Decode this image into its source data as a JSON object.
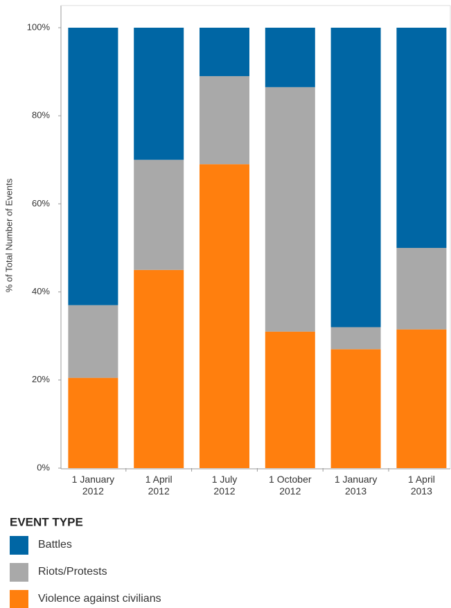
{
  "chart_data": {
    "type": "stacked-bar-100",
    "y_label": "% of Total Number of Events",
    "categories": [
      "1 January\n2012",
      "1 April\n2012",
      "1 July\n2012",
      "1 October\n2012",
      "1 January\n2013",
      "1 April\n2013"
    ],
    "series": [
      {
        "name": "Violence against civilians",
        "color": "#ff7f0e",
        "values": [
          20.5,
          45,
          69,
          31,
          27,
          31.5
        ]
      },
      {
        "name": "Riots/Protests",
        "color": "#a9a9a9",
        "values": [
          16.5,
          25,
          20,
          55.5,
          5,
          18.5
        ]
      },
      {
        "name": "Battles",
        "color": "#0066a4",
        "values": [
          63,
          30,
          11,
          13.5,
          68,
          50
        ]
      }
    ],
    "ylim": [
      0,
      100
    ],
    "yticks": [
      {
        "value": 0,
        "label": "0%"
      },
      {
        "value": 20,
        "label": "20%"
      },
      {
        "value": 40,
        "label": "40%"
      },
      {
        "value": 60,
        "label": "60%"
      },
      {
        "value": 80,
        "label": "80%"
      },
      {
        "value": 100,
        "label": "100%"
      }
    ],
    "legend_title": "EVENT TYPE",
    "legend_order": [
      2,
      1,
      0
    ],
    "grid": false
  }
}
